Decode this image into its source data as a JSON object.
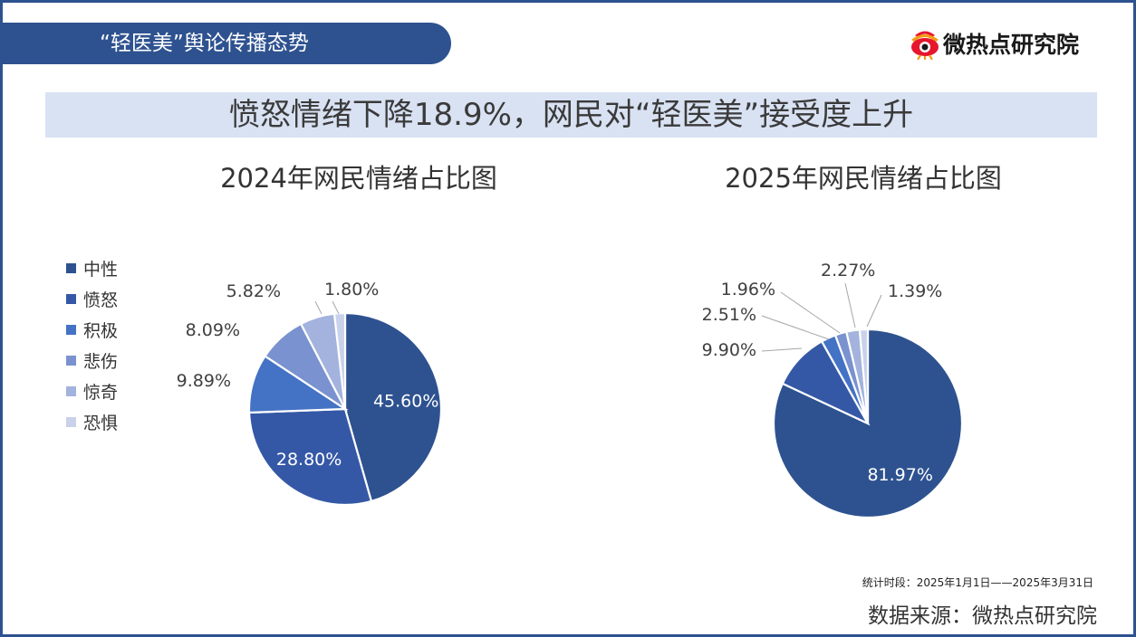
{
  "header": {
    "title": "“轻医美”舆论传播态势"
  },
  "logo": {
    "text": "微热点研究院"
  },
  "banner": {
    "title": "愤怒情绪下降18.9%，网民对“轻医美”接受度上升"
  },
  "legend": {
    "items": [
      {
        "label": "中性",
        "color": "#2e5290"
      },
      {
        "label": "愤怒",
        "color": "#3558a6"
      },
      {
        "label": "积极",
        "color": "#4472c4"
      },
      {
        "label": "悲伤",
        "color": "#7a92cf"
      },
      {
        "label": "惊奇",
        "color": "#a3b3dd"
      },
      {
        "label": "恐惧",
        "color": "#c9d2ea"
      }
    ]
  },
  "chart_data": [
    {
      "type": "pie",
      "title": "2024年网民情绪占比图",
      "categories": [
        "中性",
        "愤怒",
        "积极",
        "悲伤",
        "惊奇",
        "恐惧"
      ],
      "values": [
        45.6,
        28.8,
        9.89,
        8.09,
        5.82,
        1.8
      ],
      "labels": [
        "45.60%",
        "28.80%",
        "9.89%",
        "8.09%",
        "5.82%",
        "1.80%"
      ],
      "legend": "left"
    },
    {
      "type": "pie",
      "title": "2025年网民情绪占比图",
      "categories": [
        "中性",
        "愤怒",
        "积极",
        "悲伤",
        "惊奇",
        "恐惧"
      ],
      "values": [
        81.97,
        9.9,
        2.51,
        1.96,
        2.27,
        1.39
      ],
      "labels": [
        "81.97%",
        "9.90%",
        "2.51%",
        "1.96%",
        "2.27%",
        "1.39%"
      ]
    }
  ],
  "footer": {
    "period": "统计时段：2025年1月1日——2025年3月31日",
    "source": "数据来源：微热点研究院"
  }
}
